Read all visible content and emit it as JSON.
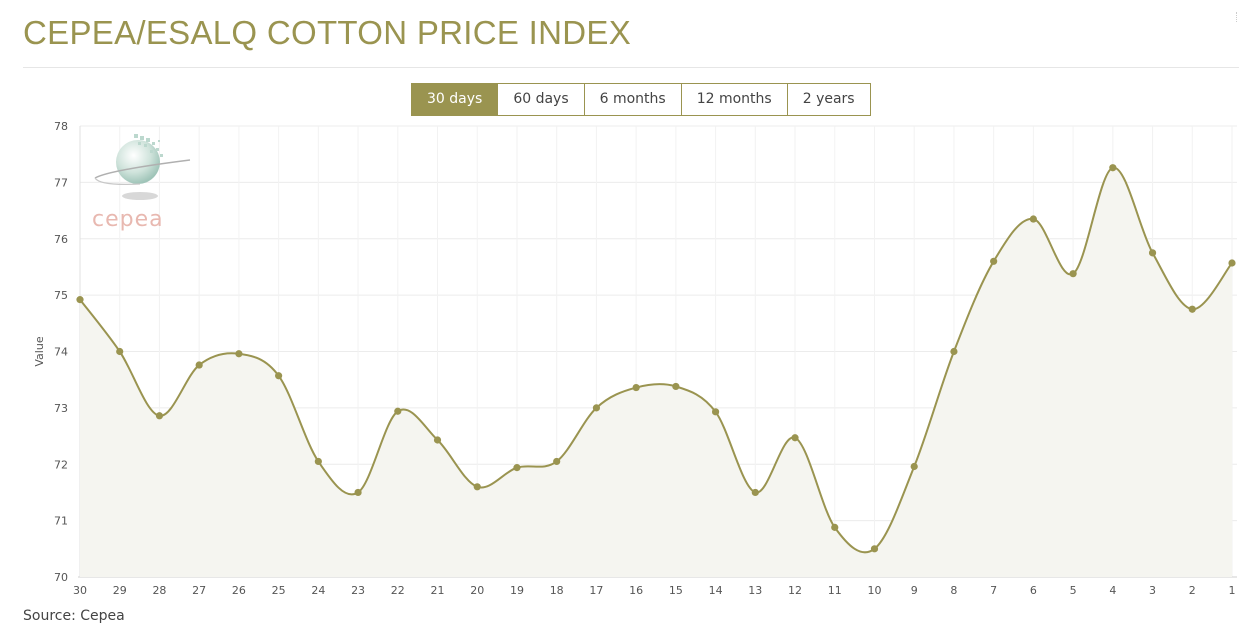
{
  "header": {
    "title": "CEPEA/ESALQ COTTON PRICE INDEX"
  },
  "tabs": [
    {
      "label": "30 days",
      "active": true
    },
    {
      "label": "60 days",
      "active": false
    },
    {
      "label": "6 months",
      "active": false
    },
    {
      "label": "12 months",
      "active": false
    },
    {
      "label": "2 years",
      "active": false
    }
  ],
  "logo": {
    "text": "cepea"
  },
  "footer": {
    "source": "Source: Cepea"
  },
  "colors": {
    "accent": "#9a9450",
    "fill": "#f5f5f0",
    "grid": "#ececec",
    "logo_text": "#e8b8b0"
  },
  "chart_data": {
    "type": "line",
    "title": "",
    "xlabel": "",
    "ylabel": "Value",
    "ylim": [
      70,
      78
    ],
    "yticks": [
      "70",
      "71",
      "72",
      "73",
      "74",
      "75",
      "76",
      "77",
      "78"
    ],
    "grid": true,
    "categories": [
      "30",
      "29",
      "28",
      "27",
      "26",
      "25",
      "24",
      "23",
      "22",
      "21",
      "20",
      "19",
      "18",
      "17",
      "16",
      "15",
      "14",
      "13",
      "12",
      "11",
      "10",
      "9",
      "8",
      "7",
      "6",
      "5",
      "4",
      "3",
      "2",
      "1"
    ],
    "series": [
      {
        "name": "",
        "values": [
          74.92,
          74.0,
          72.86,
          73.76,
          73.96,
          73.57,
          72.05,
          71.5,
          72.94,
          72.43,
          71.6,
          71.94,
          72.05,
          73.0,
          73.36,
          73.38,
          72.93,
          71.5,
          72.47,
          70.88,
          70.5,
          71.96,
          74.0,
          75.6,
          76.35,
          75.38,
          77.26,
          75.75,
          74.75,
          75.57
        ]
      }
    ]
  }
}
